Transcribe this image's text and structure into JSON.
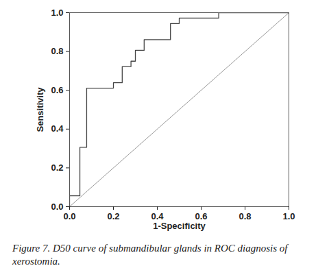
{
  "chart_data": {
    "type": "line",
    "caption": "Figure 7. D50 curve of submandibular glands in ROC diagnosis of xerostomia.",
    "x_label": "1-Specificity",
    "y_label": "Sensitivity",
    "xlim": [
      0,
      1
    ],
    "ylim": [
      0,
      1
    ],
    "xticks": [
      {
        "value": 0,
        "label": "0.0"
      },
      {
        "value": 0.2,
        "label": "0.2"
      },
      {
        "value": 0.4,
        "label": "0.4"
      },
      {
        "value": 0.6,
        "label": "0.6"
      },
      {
        "value": 0.8,
        "label": "0.8"
      },
      {
        "value": 1,
        "label": "1.0"
      }
    ],
    "yticks": [
      {
        "value": 0,
        "label": "0.0"
      },
      {
        "value": 0.2,
        "label": "0.2"
      },
      {
        "value": 0.4,
        "label": "0.4"
      },
      {
        "value": 0.6,
        "label": "0.6"
      },
      {
        "value": 0.8,
        "label": "0.8"
      },
      {
        "value": 1,
        "label": "1.0"
      }
    ],
    "grid": false,
    "series": [
      {
        "color": "#9a9a9a",
        "x": [
          0,
          1
        ],
        "values": [
          0,
          1
        ]
      },
      {
        "color": "#444444",
        "x": [
          0,
          0,
          0.047,
          0.047,
          0.078,
          0.078,
          0.2,
          0.2,
          0.24,
          0.24,
          0.28,
          0.28,
          0.3,
          0.3,
          0.34,
          0.34,
          0.46,
          0.46,
          0.5,
          0.5,
          0.68,
          0.68,
          1
        ],
        "values": [
          0,
          0.056,
          0.056,
          0.306,
          0.306,
          0.611,
          0.611,
          0.639,
          0.639,
          0.722,
          0.722,
          0.75,
          0.75,
          0.806,
          0.806,
          0.861,
          0.861,
          0.944,
          0.944,
          0.972,
          0.972,
          1,
          1
        ]
      }
    ]
  }
}
